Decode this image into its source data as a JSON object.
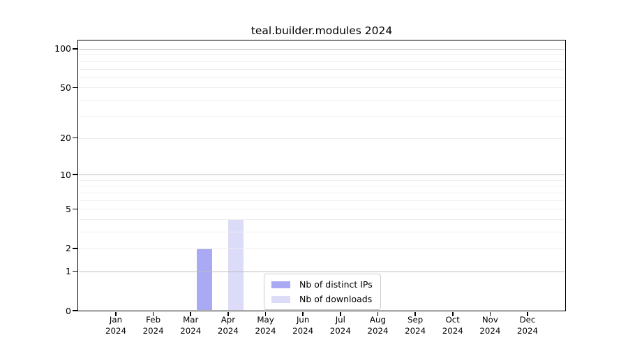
{
  "figure": {
    "title": "teal.builder.modules 2024"
  },
  "chart_data": {
    "type": "bar",
    "title": "teal.builder.modules 2024",
    "x_axis": {
      "categories": [
        "Jan",
        "Feb",
        "Mar",
        "Apr",
        "May",
        "Jun",
        "Jul",
        "Aug",
        "Sep",
        "Oct",
        "Nov",
        "Dec"
      ],
      "year_label": "2024"
    },
    "y_axis": {
      "scale": "log1p",
      "ticks": [
        0,
        1,
        2,
        5,
        10,
        20,
        50,
        100
      ],
      "major_gridlines": [
        1,
        10,
        100
      ],
      "minor_gridlines": [
        2,
        3,
        4,
        5,
        6,
        7,
        8,
        9,
        20,
        30,
        40,
        50,
        60,
        70,
        80,
        90
      ],
      "ylim": [
        0,
        116
      ]
    },
    "series": [
      {
        "name": "Nb of distinct IPs",
        "color": "#a9a9f4",
        "values": [
          0,
          0,
          0,
          2,
          0,
          0,
          0,
          0,
          0,
          0,
          0,
          0
        ]
      },
      {
        "name": "Nb of downloads",
        "color": "#dcdcf8",
        "values": [
          0,
          0,
          0,
          4,
          0,
          0,
          0,
          0,
          0,
          0,
          0,
          0
        ]
      }
    ],
    "legend": {
      "entries": [
        "Nb of distinct IPs",
        "Nb of downloads"
      ],
      "position": "bottom-center"
    },
    "grid": "horizontal"
  },
  "colors": {
    "background": "#ffffff",
    "spine": "#000000",
    "major_grid": "#bcbcbc",
    "minor_grid": "#ededed",
    "text": "#000000",
    "legend_border": "#cccccc"
  }
}
